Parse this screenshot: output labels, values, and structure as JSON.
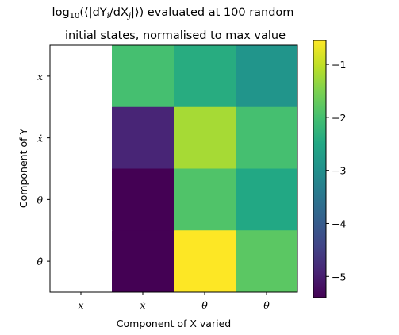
{
  "chart_data": {
    "type": "heatmap",
    "title_line1_prefix": "log",
    "title_line1_sub": "10",
    "title_line1_expr": "(⟨|dY",
    "title_line1_expr_i": "i",
    "title_line1_expr_mid": "/dX",
    "title_line1_expr_j": "j",
    "title_line1_expr_end": "|⟩)",
    "title_line1_suffix": " evaluated at 100 random",
    "title_line2": "initial states, normalised to max value",
    "xlabel": "Component of X varied",
    "ylabel": "Component of Y",
    "x_categories": [
      "x",
      "ẋ",
      "θ",
      "θ̇"
    ],
    "y_categories": [
      "x",
      "ẋ",
      "θ",
      "θ̇"
    ],
    "values": [
      [
        null,
        -2.0,
        -2.4,
        -2.9
      ],
      [
        null,
        -4.9,
        -1.2,
        -2.0
      ],
      [
        null,
        -5.4,
        -1.9,
        -2.5
      ],
      [
        null,
        -5.4,
        -0.55,
        -1.8
      ]
    ],
    "colorbar": {
      "min": -5.4,
      "max": -0.55,
      "ticks": [
        -1,
        -2,
        -3,
        -4,
        -5
      ],
      "colormap": "viridis"
    }
  }
}
